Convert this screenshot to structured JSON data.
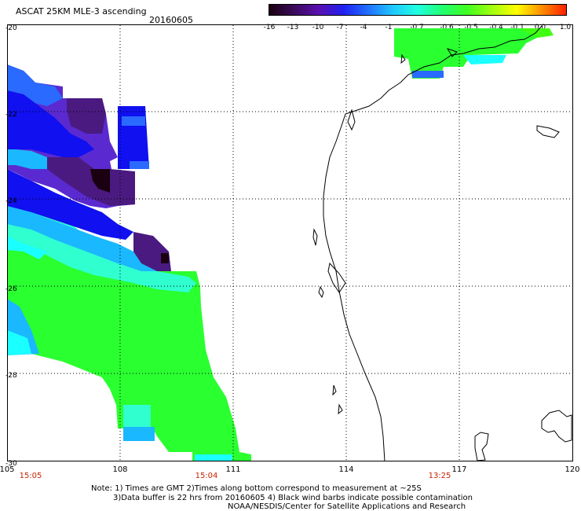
{
  "header": {
    "title": "ASCAT 25KM MLE-3 ascending",
    "date": "20160605"
  },
  "colorbar": {
    "tick_labels": [
      "-16",
      "-13",
      "-10",
      "-7",
      "-4",
      "-1",
      "-0.7",
      "-0.6",
      "-0.5",
      "-0.4",
      "-0.1",
      "0.0",
      "1.0"
    ],
    "colors": [
      "#1a0010",
      "#3a0a5a",
      "#5a10b0",
      "#2020f0",
      "#2070ff",
      "#20c8ff",
      "#20ffe0",
      "#20ff70",
      "#40ff20",
      "#a0ff10",
      "#ffff00",
      "#ff9000",
      "#ff2000"
    ]
  },
  "map": {
    "lat_labels": [
      "-20",
      "-22",
      "-24",
      "-26",
      "-28",
      "-30"
    ],
    "lon_labels": [
      "105",
      "108",
      "111",
      "114",
      "117",
      "120"
    ],
    "time_labels": [
      "15:05",
      "15:04",
      "13:25"
    ],
    "lat_range": [
      -30,
      -20
    ],
    "lon_range": [
      105,
      120
    ],
    "grid": "dotted",
    "colors": {
      "black": "#1a0010",
      "purple": "#4a1a80",
      "violet": "#5a2ad0",
      "blue": "#1010f0",
      "midblue": "#2a6aff",
      "sky": "#1ab8ff",
      "cyan": "#1affff",
      "aqua": "#30ffd0",
      "green": "#2aff30",
      "lime": "#40ff10"
    }
  },
  "footer": {
    "note_line1": "Note: 1) Times are GMT 2)Times along bottom correspond to measurement at ~25S",
    "note_line2": "3)Data buffer is 22 hrs from 20160605 4) Black wind barbs indicate possible contamination",
    "credit": "NOAA/NESDIS/Center for Satellite Applications and Research"
  }
}
